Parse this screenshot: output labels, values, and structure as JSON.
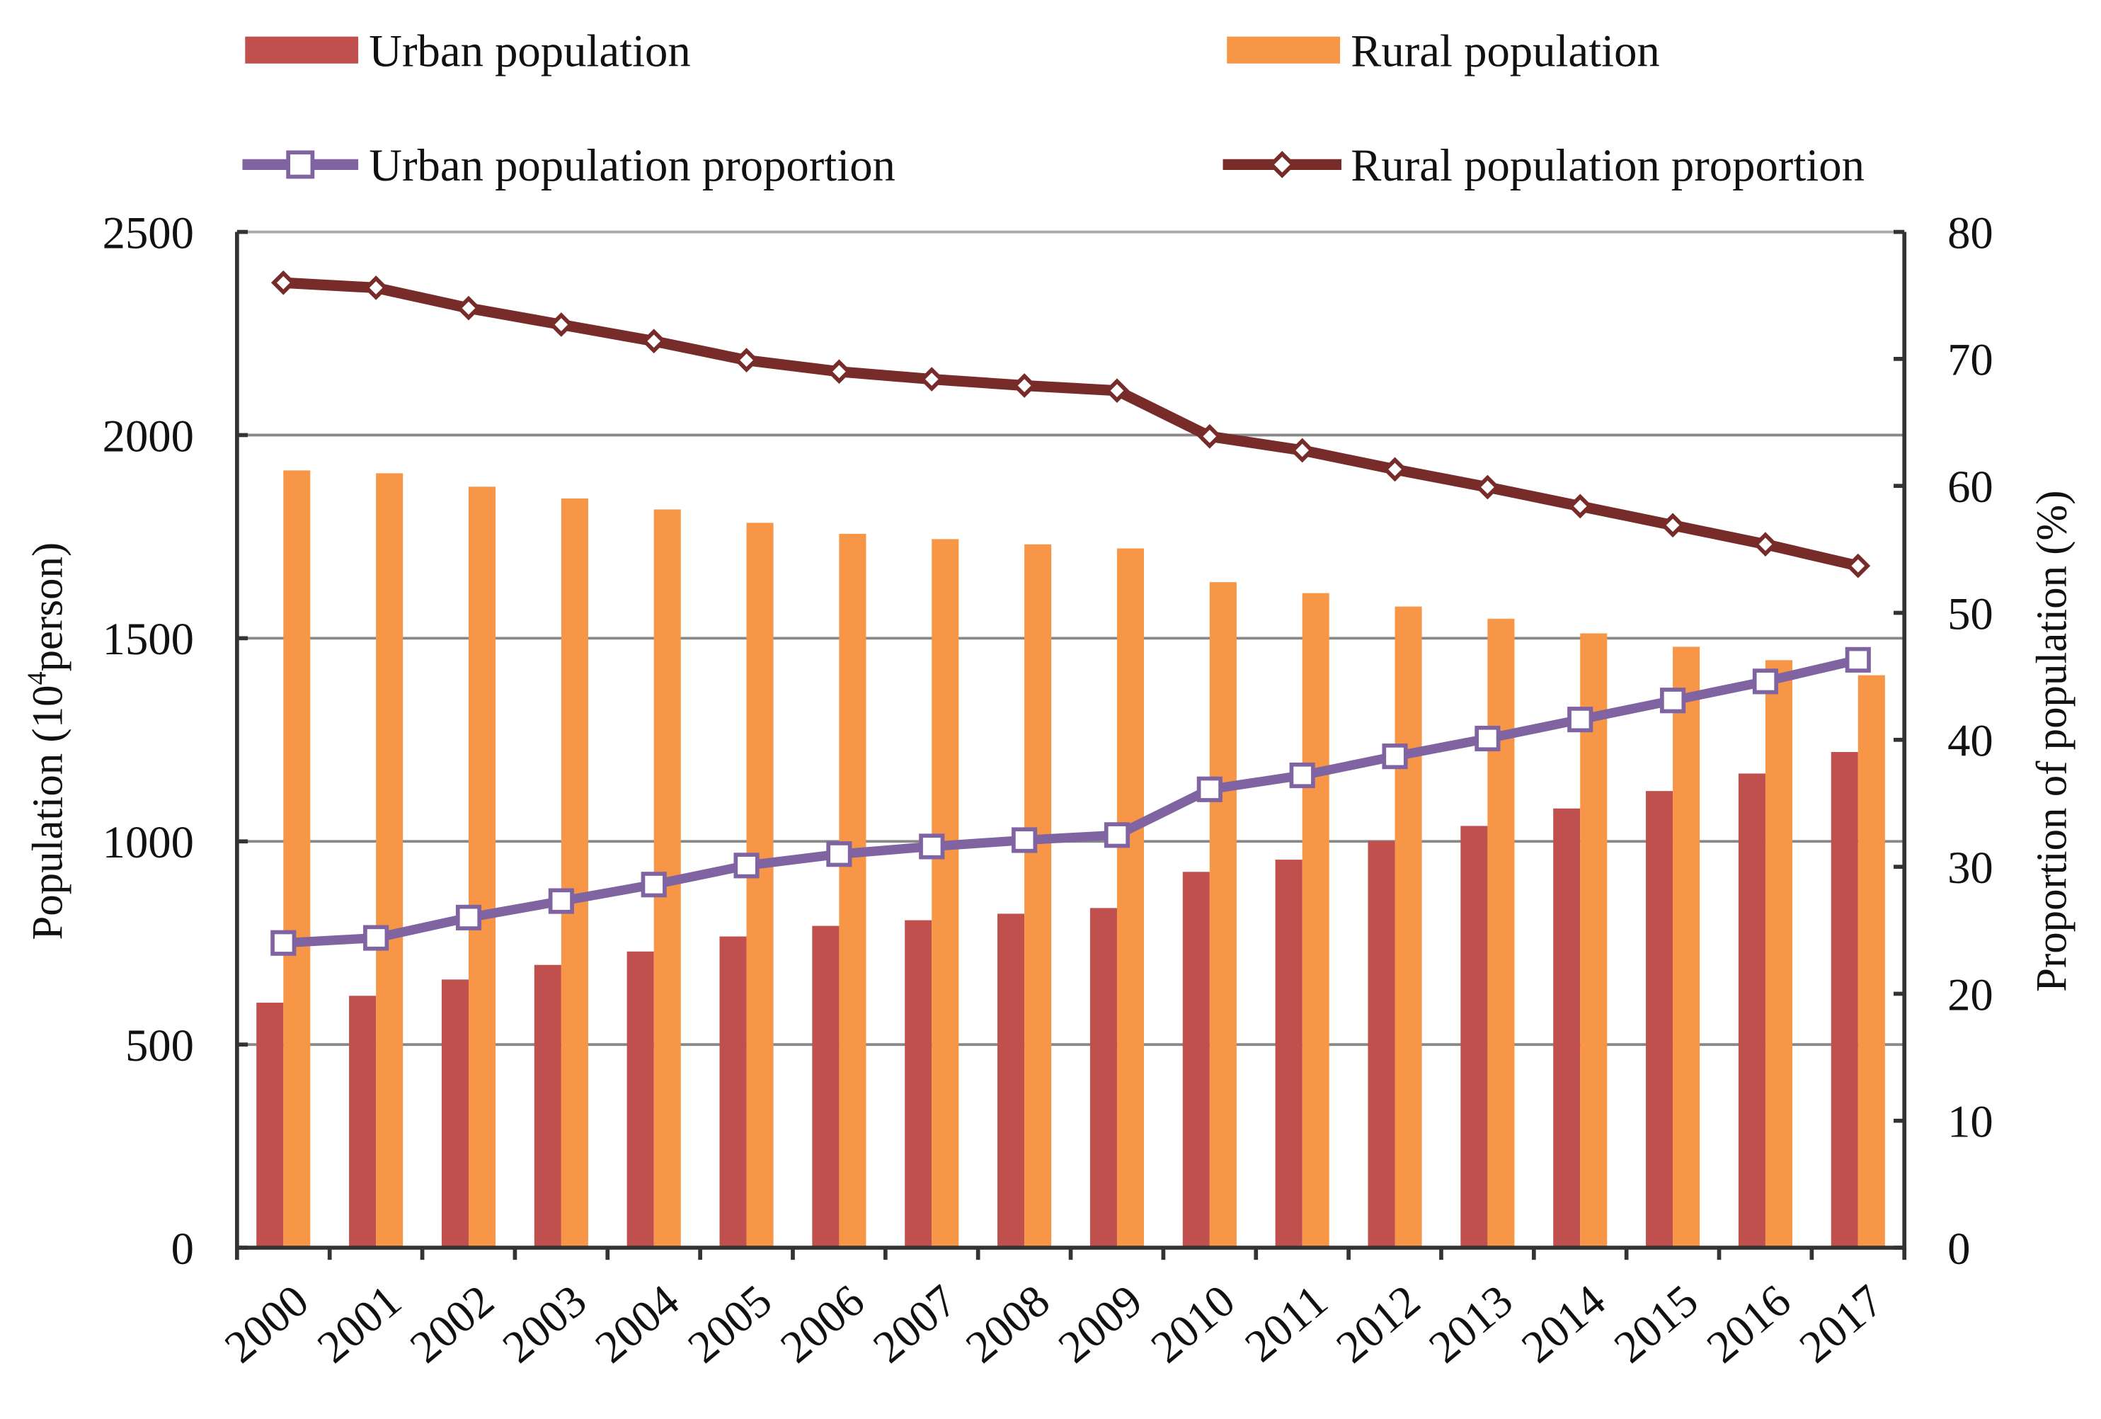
{
  "chart_data": {
    "type": "bar",
    "title": "",
    "categories": [
      "2000",
      "2001",
      "2002",
      "2003",
      "2004",
      "2005",
      "2006",
      "2007",
      "2008",
      "2009",
      "2010",
      "2011",
      "2012",
      "2013",
      "2014",
      "2015",
      "2016",
      "2017"
    ],
    "ylabel": "Population (10",
    "ylabel_sup": "4",
    "ylabel_tail": "person)",
    "y2label": "Proportion of population (%)",
    "ylim": [
      0,
      2500
    ],
    "y2lim": [
      0,
      80
    ],
    "yticks": [
      "0",
      "500",
      "1000",
      "1500",
      "2000",
      "2500"
    ],
    "y2ticks": [
      "0",
      "10",
      "20",
      "30",
      "40",
      "50",
      "60",
      "70",
      "80"
    ],
    "grid": true,
    "legend_position": "top",
    "series": [
      {
        "name": "Urban population",
        "type": "bar",
        "axis": "left",
        "color": "#c0504d",
        "values": [
          603,
          620,
          660,
          696,
          729,
          766,
          792,
          806,
          822,
          836,
          925,
          955,
          1001,
          1038,
          1081,
          1124,
          1167,
          1220
        ]
      },
      {
        "name": "Rural population",
        "type": "bar",
        "axis": "left",
        "color": "#f79646",
        "values": [
          1913,
          1906,
          1873,
          1844,
          1817,
          1784,
          1757,
          1744,
          1731,
          1721,
          1638,
          1611,
          1578,
          1548,
          1512,
          1479,
          1446,
          1409
        ]
      },
      {
        "name": "Urban population proportion",
        "type": "line",
        "axis": "right",
        "color": "#8064a2",
        "marker": "square",
        "values": [
          24.0,
          24.4,
          26.0,
          27.3,
          28.6,
          30.1,
          31.0,
          31.6,
          32.1,
          32.5,
          36.1,
          37.2,
          38.7,
          40.1,
          41.6,
          43.1,
          44.6,
          46.3
        ]
      },
      {
        "name": "Rural population proportion",
        "type": "line",
        "axis": "right",
        "color": "#772c2a",
        "marker": "diamond",
        "values": [
          76.0,
          75.6,
          74.0,
          72.7,
          71.4,
          69.9,
          69.0,
          68.4,
          67.9,
          67.5,
          63.9,
          62.8,
          61.3,
          59.9,
          58.4,
          56.9,
          55.4,
          53.7
        ]
      }
    ]
  }
}
